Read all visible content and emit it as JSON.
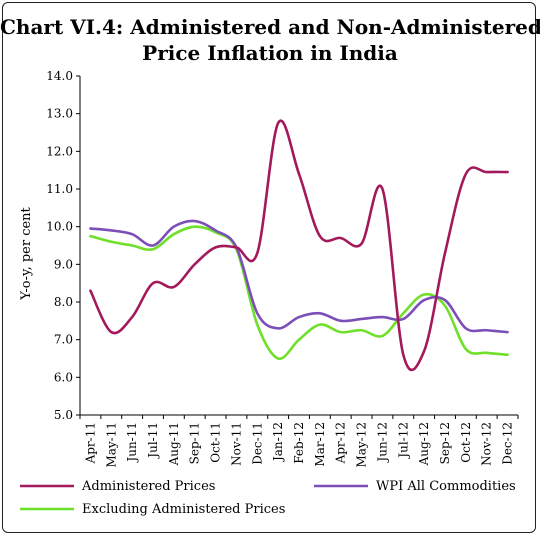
{
  "chart_data": {
    "type": "line",
    "title_line1": "Chart VI.4: Administered and Non-Administered",
    "title_line2": "Price Inflation in India",
    "xlabel": "",
    "ylabel": "Y-o-y, per cent",
    "ylim": [
      5.0,
      14.0
    ],
    "yticks": [
      "5.0",
      "6.0",
      "7.0",
      "8.0",
      "9.0",
      "10.0",
      "11.0",
      "12.0",
      "13.0",
      "14.0"
    ],
    "categories": [
      "Apr-11",
      "May-11",
      "Jun-11",
      "Jul-11",
      "Aug-11",
      "Sep-11",
      "Oct-11",
      "Nov-11",
      "Dec-11",
      "Jan-12",
      "Feb-12",
      "Mar-12",
      "Apr-12",
      "May-12",
      "Jun-12",
      "Jul-12",
      "Aug-12",
      "Sep-12",
      "Oct-12",
      "Nov-12",
      "Dec-12"
    ],
    "grid": false,
    "legend_position": "bottom",
    "series": [
      {
        "name": "Administered Prices",
        "color": "#a3195b",
        "values": [
          8.3,
          7.2,
          7.6,
          8.5,
          8.4,
          9.0,
          9.45,
          9.45,
          9.3,
          12.75,
          11.4,
          9.75,
          9.7,
          9.55,
          11.0,
          6.6,
          6.7,
          9.3,
          11.4,
          11.45,
          11.45
        ]
      },
      {
        "name": "WPI All Commodities",
        "color": "#7c4fb8",
        "values": [
          9.95,
          9.9,
          9.8,
          9.5,
          10.0,
          10.15,
          9.9,
          9.45,
          7.7,
          7.3,
          7.6,
          7.7,
          7.5,
          7.55,
          7.6,
          7.55,
          8.05,
          8.05,
          7.3,
          7.25,
          7.2
        ]
      },
      {
        "name": "Excluding Administered Prices",
        "color": "#6ee02a",
        "values": [
          9.75,
          9.6,
          9.5,
          9.4,
          9.8,
          10.0,
          9.85,
          9.4,
          7.4,
          6.5,
          7.0,
          7.4,
          7.2,
          7.25,
          7.1,
          7.7,
          8.2,
          7.9,
          6.75,
          6.65,
          6.6
        ]
      }
    ]
  }
}
